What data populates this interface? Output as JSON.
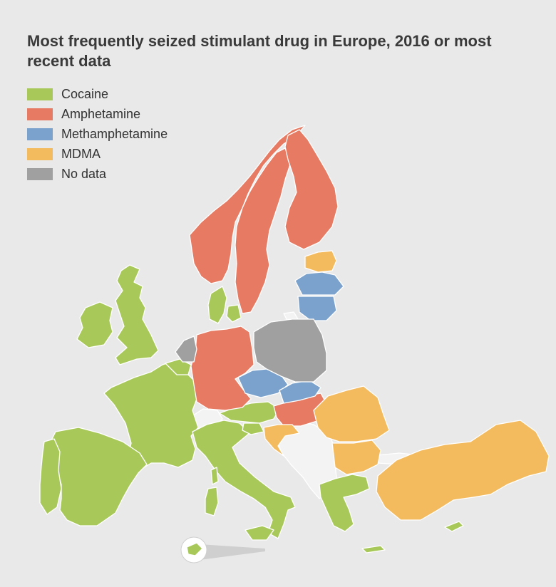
{
  "title": "Most frequently seized stimulant drug in Europe, 2016 or most recent data",
  "colors": {
    "cocaine": "#a8c95a",
    "amphetamine": "#e77a62",
    "methamphetamine": "#7aa2cd",
    "mdma": "#f4ba5e",
    "nodata": "#a0a0a0",
    "other": "#f3f3f3"
  },
  "legend": [
    {
      "label": "Cocaine",
      "color": "#a8c95a"
    },
    {
      "label": "Amphetamine",
      "color": "#e77a62"
    },
    {
      "label": "Methamphetamine",
      "color": "#7aa2cd"
    },
    {
      "label": "MDMA",
      "color": "#f4ba5e"
    },
    {
      "label": "No data",
      "color": "#a0a0a0"
    }
  ],
  "regions": {
    "cocaine": [
      "United Kingdom",
      "Ireland",
      "France",
      "Spain",
      "Portugal",
      "Belgium",
      "Luxembourg",
      "Italy",
      "Austria",
      "Slovenia",
      "Denmark",
      "Greece",
      "Cyprus",
      "Malta"
    ],
    "amphetamine": [
      "Norway",
      "Sweden",
      "Finland",
      "Germany",
      "Hungary"
    ],
    "methamphetamine": [
      "Latvia",
      "Lithuania",
      "Czech Republic",
      "Slovakia"
    ],
    "mdma": [
      "Estonia",
      "Croatia",
      "Romania",
      "Bulgaria",
      "Turkey"
    ],
    "nodata": [
      "Netherlands",
      "Poland"
    ]
  }
}
